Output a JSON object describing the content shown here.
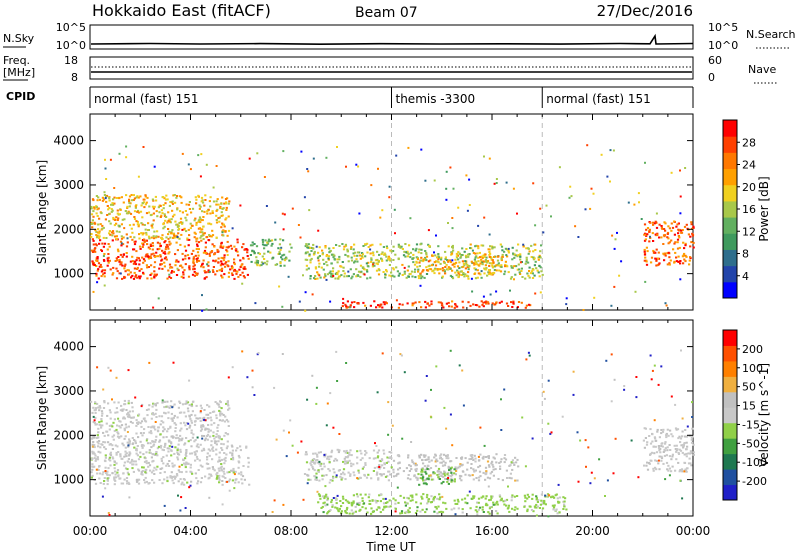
{
  "header": {
    "station": "Hokkaido East (fitACF)",
    "beam": "Beam 07",
    "date": "27/Dec/2016"
  },
  "nsky_panel": {
    "left_label": "N.Sky",
    "left_ticks": [
      "10^5",
      "10^0"
    ],
    "right_ticks": [
      "10^5",
      "10^0"
    ],
    "right_label": "N.Search"
  },
  "freq_panel": {
    "left_label_1": "Freq.",
    "left_label_2": "[MHz]",
    "left_ticks": [
      "18",
      "8"
    ],
    "right_ticks": [
      "60",
      "0"
    ],
    "right_label": "Nave"
  },
  "cpid_panel": {
    "label": "CPID",
    "segments": [
      {
        "name": "normal (fast) 151",
        "start_hour": 0
      },
      {
        "name": "themis -3300",
        "start_hour": 12
      },
      {
        "name": "normal (fast) 151",
        "start_hour": 18
      }
    ]
  },
  "colors": {
    "power_scale": [
      "#0000ff",
      "#2244aa",
      "#2e6e8c",
      "#3f9a5e",
      "#62b060",
      "#a8c84a",
      "#f0d020",
      "#ffa000",
      "#ff7800",
      "#ff4000",
      "#ff0000"
    ],
    "velocity_scale": [
      "#2020c8",
      "#2050a0",
      "#1e7850",
      "#40a040",
      "#90d048",
      "#c8c8c8",
      "#c0c0c0",
      "#f0b040",
      "#ff8000",
      "#ff5000",
      "#ff0000"
    ]
  },
  "chart_data": [
    {
      "type": "heatmap",
      "panel": "power",
      "xlabel": "",
      "ylabel": "Slant Range [km]",
      "xlim": [
        0,
        24
      ],
      "ylim": [
        180,
        4600
      ],
      "yticks": [
        1000,
        2000,
        3000,
        4000
      ],
      "x_tick_labels": [
        "00:00",
        "04:00",
        "08:00",
        "12:00",
        "16:00",
        "20:00",
        "00:00"
      ],
      "x_tick_hours": [
        0,
        4,
        8,
        12,
        16,
        20,
        24
      ],
      "colorbar": {
        "label": "Power [dB]",
        "min": 0,
        "max": 32,
        "tick_labels": [
          "4",
          "8",
          "12",
          "16",
          "20",
          "24",
          "28"
        ],
        "ticks": [
          4,
          8,
          12,
          16,
          20,
          24,
          28
        ]
      },
      "regions": [
        {
          "t0": 0.0,
          "t1": 6.3,
          "r0": 900,
          "r1": 1800,
          "value": 27
        },
        {
          "t0": 0.0,
          "t1": 5.5,
          "r0": 1800,
          "r1": 2800,
          "value": 20
        },
        {
          "t0": 6.3,
          "t1": 8.0,
          "r0": 1200,
          "r1": 1800,
          "value": 14
        },
        {
          "t0": 8.5,
          "t1": 18.0,
          "r0": 900,
          "r1": 1700,
          "value": 16
        },
        {
          "t0": 13.0,
          "t1": 16.5,
          "r0": 1000,
          "r1": 1500,
          "value": 21
        },
        {
          "t0": 10.0,
          "t1": 17.5,
          "r0": 250,
          "r1": 400,
          "value": 28
        },
        {
          "t0": 22.0,
          "t1": 24.0,
          "r0": 1200,
          "r1": 2200,
          "value": 26
        }
      ]
    },
    {
      "type": "heatmap",
      "panel": "velocity",
      "xlabel": "Time UT",
      "ylabel": "Slant Range [km]",
      "xlim": [
        0,
        24
      ],
      "ylim": [
        180,
        4600
      ],
      "yticks": [
        1000,
        2000,
        3000,
        4000
      ],
      "x_tick_labels": [
        "00:00",
        "04:00",
        "08:00",
        "12:00",
        "16:00",
        "20:00",
        "00:00"
      ],
      "x_tick_hours": [
        0,
        4,
        8,
        12,
        16,
        20,
        24
      ],
      "colorbar": {
        "label": "Velocity [m s^-1]",
        "min": -250,
        "max": 250,
        "tick_labels": [
          "200",
          "100",
          "50",
          "15",
          "-15",
          "-50",
          "-100",
          "-200"
        ]
      },
      "regions": [
        {
          "t0": 0.0,
          "t1": 6.3,
          "r0": 900,
          "r1": 1800,
          "value": 0
        },
        {
          "t0": 0.0,
          "t1": 5.5,
          "r0": 1800,
          "r1": 2800,
          "value": 5
        },
        {
          "t0": 8.5,
          "t1": 12.0,
          "r0": 1000,
          "r1": 1700,
          "value": 0
        },
        {
          "t0": 12.0,
          "t1": 17.0,
          "r0": 1000,
          "r1": 1600,
          "value": 40
        },
        {
          "t0": 13.0,
          "t1": 14.5,
          "r0": 900,
          "r1": 1300,
          "value": -70
        },
        {
          "t0": 9.0,
          "t1": 19.0,
          "r0": 250,
          "r1": 700,
          "value": -40
        },
        {
          "t0": 22.0,
          "t1": 24.0,
          "r0": 1200,
          "r1": 2200,
          "value": 10
        }
      ]
    }
  ]
}
